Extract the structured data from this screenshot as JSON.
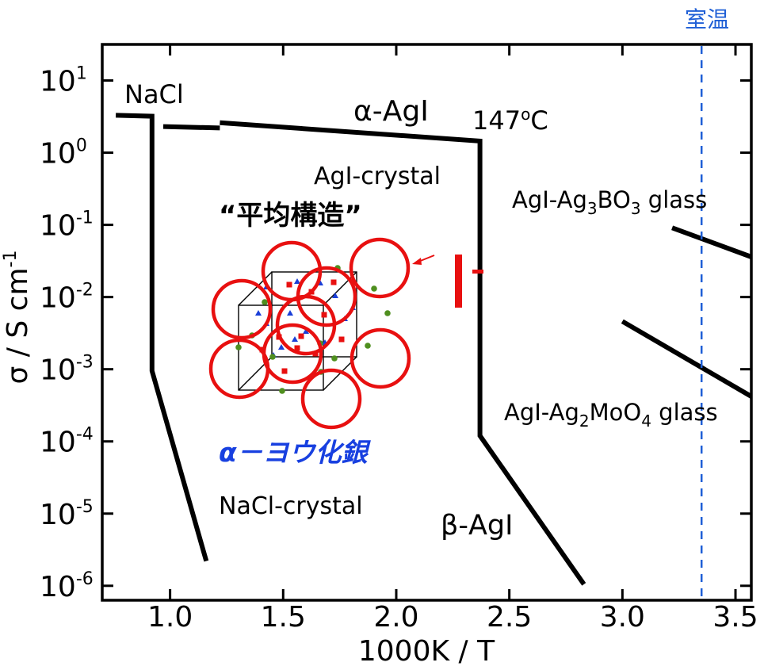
{
  "chart_data": {
    "type": "line",
    "xlabel": "1000K / T",
    "ylabel_parts": {
      "pre": "σ / S cm",
      "sup": "-1"
    },
    "xlim": [
      0.7,
      3.57
    ],
    "ylim_log10": [
      -6.2,
      1.5
    ],
    "yscale": "log",
    "x_ticks": [
      {
        "value": 1.0,
        "label": "1.0"
      },
      {
        "value": 1.5,
        "label": "1.5"
      },
      {
        "value": 2.0,
        "label": "2.0"
      },
      {
        "value": 2.5,
        "label": "2.5"
      },
      {
        "value": 3.0,
        "label": "3.0"
      },
      {
        "value": 3.5,
        "label": "3.5"
      }
    ],
    "y_ticks": [
      {
        "exp": 1,
        "base": "10",
        "sup": "1"
      },
      {
        "exp": 0,
        "base": "10",
        "sup": "0"
      },
      {
        "exp": -1,
        "base": "10",
        "sup": "-1"
      },
      {
        "exp": -2,
        "base": "10",
        "sup": "-2"
      },
      {
        "exp": -3,
        "base": "10",
        "sup": "-3"
      },
      {
        "exp": -4,
        "base": "10",
        "sup": "-4"
      },
      {
        "exp": -5,
        "base": "10",
        "sup": "-5"
      },
      {
        "exp": -6,
        "base": "10",
        "sup": "-6"
      }
    ],
    "series": [
      {
        "id": "nacl",
        "points": [
          [
            0.76,
            3.3
          ],
          [
            0.92,
            3.2
          ],
          [
            0.92,
            0.00095
          ],
          [
            1.16,
            2.2e-06
          ]
        ]
      },
      {
        "id": "agi-alpha-1",
        "points": [
          [
            0.97,
            2.3
          ],
          [
            1.22,
            2.2
          ]
        ]
      },
      {
        "id": "agi-alpha-2",
        "points": [
          [
            1.22,
            2.6
          ],
          [
            2.37,
            1.45
          ],
          [
            2.37,
            0.00012
          ],
          [
            2.83,
            1.05e-06
          ]
        ]
      },
      {
        "id": "borate-glass",
        "points": [
          [
            3.22,
            0.091
          ],
          [
            3.57,
            0.036
          ]
        ]
      },
      {
        "id": "molybdate-glass",
        "points": [
          [
            3.0,
            0.0046
          ],
          [
            3.57,
            0.00042
          ]
        ]
      }
    ],
    "room_temperature": {
      "x": 3.35,
      "label": "室温",
      "color": "#1f5fd6"
    },
    "annotations": {
      "nacl": "NaCl",
      "alpha_agi": "α-AgI",
      "transition": "147",
      "transition_sup": "o",
      "transition_unit": "C",
      "agi_crystal": "AgI-crystal",
      "avg_structure": "“平均構造”",
      "borate_glass": {
        "pre": "AgI-Ag",
        "sub1": "3",
        "mid": "BO",
        "sub2": "3",
        "post": " glass"
      },
      "molybdate_glass": {
        "pre": "AgI-Ag",
        "sub1": "2",
        "mid": "MoO",
        "sub2": "4",
        "post": " glass"
      },
      "alpha_silver_iodide": "α－ヨウ化銀",
      "nacl_crystal": "NaCl-crystal",
      "beta_agi": "β-AgI"
    },
    "colors": {
      "line": "#000000",
      "iodide": "#e81010",
      "silver_triangle": "#1a3fd8",
      "silver_dot": "#4f8f1f",
      "title_blue": "#1840e0"
    }
  }
}
